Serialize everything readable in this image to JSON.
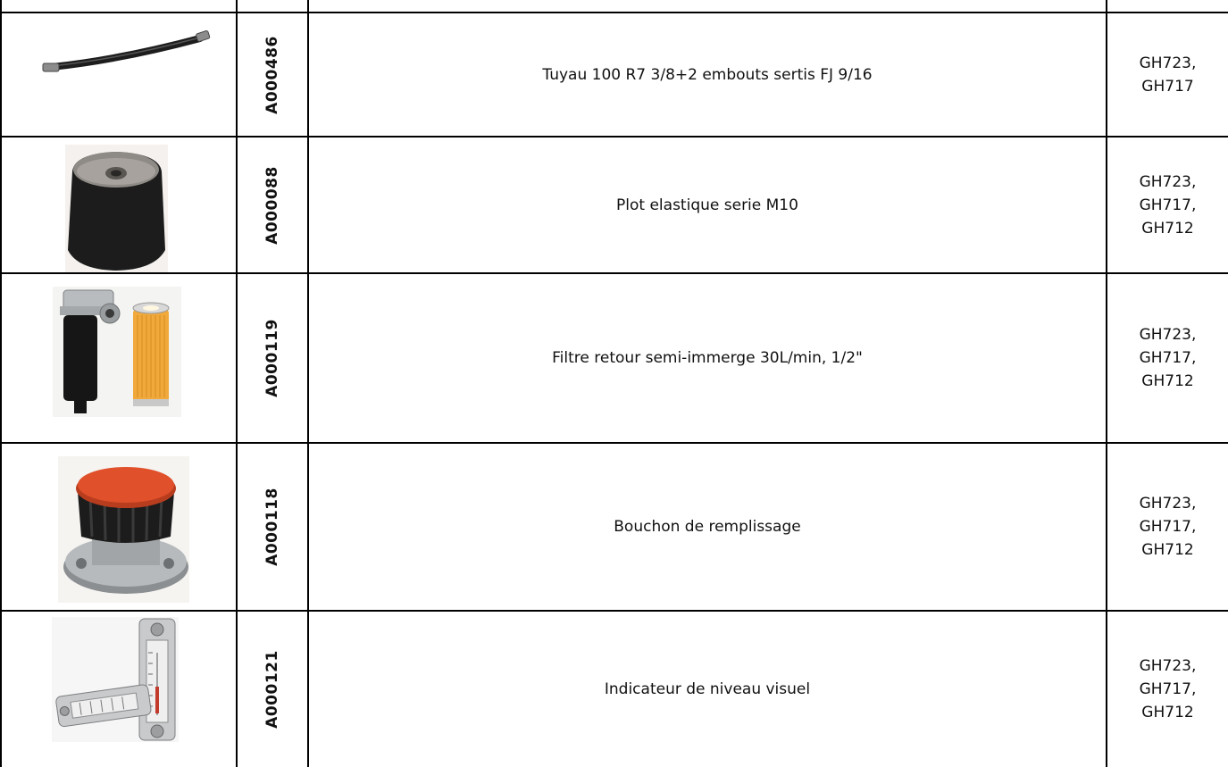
{
  "table": {
    "rows": [
      {
        "image": "hydraulic-hose-image",
        "ref": "A000486",
        "description": "Tuyau 100 R7 3/8+2 embouts sertis FJ 9/16",
        "models": [
          "GH723,",
          "GH717"
        ]
      },
      {
        "image": "rubber-mount-image",
        "ref": "A000088",
        "description": "Plot elastique serie M10",
        "models": [
          "GH723,",
          "GH717,",
          "GH712"
        ]
      },
      {
        "image": "return-filter-image",
        "ref": "A000119",
        "description": "Filtre retour semi-immerge 30L/min, 1/2\"",
        "models": [
          "GH723,",
          "GH717,",
          "GH712"
        ]
      },
      {
        "image": "filler-cap-image",
        "ref": "A000118",
        "description": "Bouchon de remplissage",
        "models": [
          "GH723,",
          "GH717,",
          "GH712"
        ]
      },
      {
        "image": "level-indicator-image",
        "ref": "A000121",
        "description": "Indicateur de niveau visuel",
        "models": [
          "GH723,",
          "GH717,",
          "GH712"
        ]
      }
    ]
  },
  "colors": {
    "grid": "#000000",
    "filter_orange": "#f2a93b",
    "cap_red": "#e0502a"
  }
}
